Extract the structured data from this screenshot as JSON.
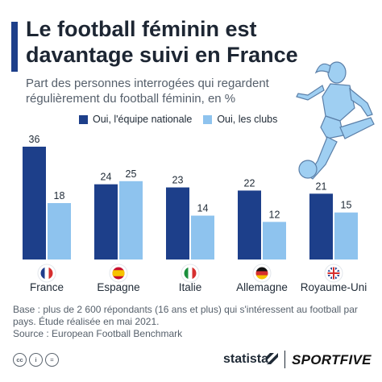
{
  "header": {
    "title": "Le football féminin est davantage suivi en France",
    "subtitle": "Part des personnes interrogées qui regardent régulièrement du football féminin, en %"
  },
  "colors": {
    "accent": "#1d3f8a",
    "series1": "#1d3f8a",
    "series2": "#8ec3ee",
    "illustration": "#9fcff2"
  },
  "chart_data": {
    "type": "bar",
    "title": "Le football féminin est davantage suivi en France",
    "subtitle": "Part des personnes interrogées qui regardent régulièrement du football féminin, en %",
    "categories": [
      "France",
      "Espagne",
      "Italie",
      "Allemagne",
      "Royaume-Uni"
    ],
    "flags": [
      "flag-france-icon",
      "flag-spain-icon",
      "flag-italy-icon",
      "flag-germany-icon",
      "flag-uk-icon"
    ],
    "series": [
      {
        "name": "Oui, l'équipe nationale",
        "values": [
          36,
          24,
          23,
          22,
          21
        ],
        "color": "#1d3f8a"
      },
      {
        "name": "Oui, les clubs",
        "values": [
          18,
          25,
          14,
          12,
          15
        ],
        "color": "#8ec3ee"
      }
    ],
    "xlabel": "",
    "ylabel": "",
    "ylim": [
      0,
      36
    ],
    "grid": false,
    "legend": "top",
    "data_labels": true
  },
  "footnote": {
    "base": "Base : plus de 2 600 répondants (16 ans et plus) qui s'intéressent au football par pays. Étude réalisée en mai 2021.",
    "source": "Source : European Football Benchmark"
  },
  "footer": {
    "cc": [
      "cc",
      "i",
      "="
    ],
    "statista": "statista",
    "sportfive": "SPORTFIVE"
  }
}
